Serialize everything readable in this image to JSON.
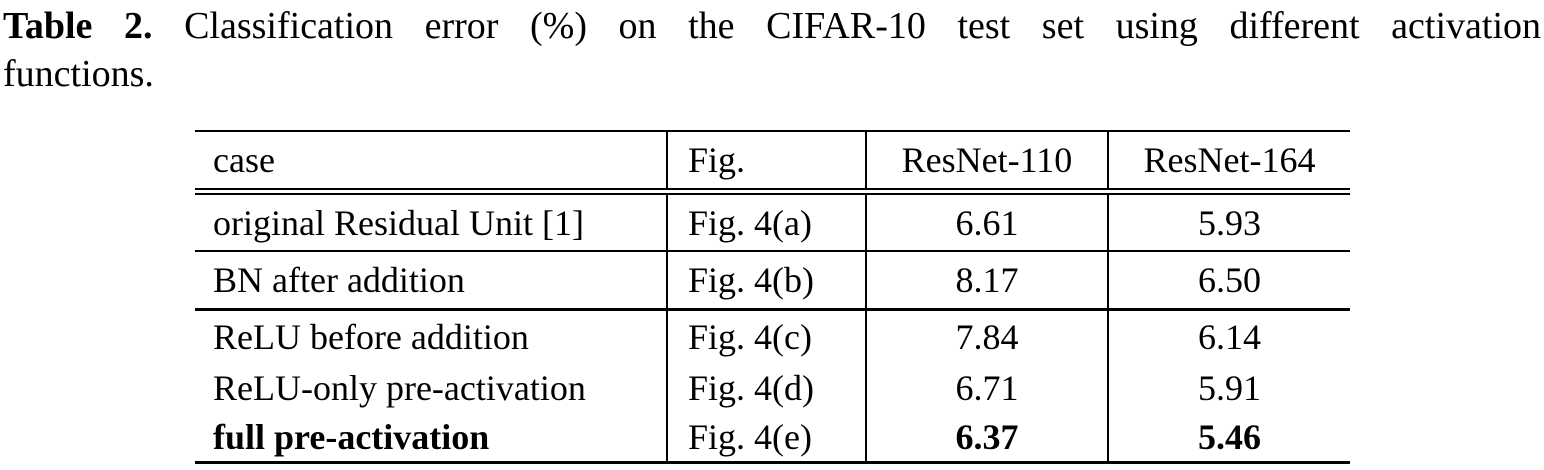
{
  "caption": {
    "label": "Table 2.",
    "line1": "Classification error (%) on the CIFAR-10 test set using different activation",
    "line2": "functions."
  },
  "table": {
    "columns": [
      {
        "key": "case",
        "label": "case"
      },
      {
        "key": "fig",
        "label": "Fig."
      },
      {
        "key": "resnet110",
        "label": "ResNet-110"
      },
      {
        "key": "resnet164",
        "label": "ResNet-164"
      }
    ],
    "rows": [
      {
        "case": "original Residual Unit [1]",
        "fig": "Fig. 4(a)",
        "resnet110": "6.61",
        "resnet164": "5.93",
        "bold": false
      },
      {
        "case": "BN after addition",
        "fig": "Fig. 4(b)",
        "resnet110": "8.17",
        "resnet164": "6.50",
        "bold": false
      },
      {
        "case": "ReLU before addition",
        "fig": "Fig. 4(c)",
        "resnet110": "7.84",
        "resnet164": "6.14",
        "bold": false
      },
      {
        "case": "ReLU-only pre-activation",
        "fig": "Fig. 4(d)",
        "resnet110": "6.71",
        "resnet164": "5.91",
        "bold": false
      },
      {
        "case": "full pre-activation",
        "fig": "Fig. 4(e)",
        "resnet110": "6.37",
        "resnet164": "5.46",
        "bold": true
      }
    ]
  },
  "colors": {
    "text": "#000000",
    "background": "#ffffff",
    "rule": "#000000"
  }
}
